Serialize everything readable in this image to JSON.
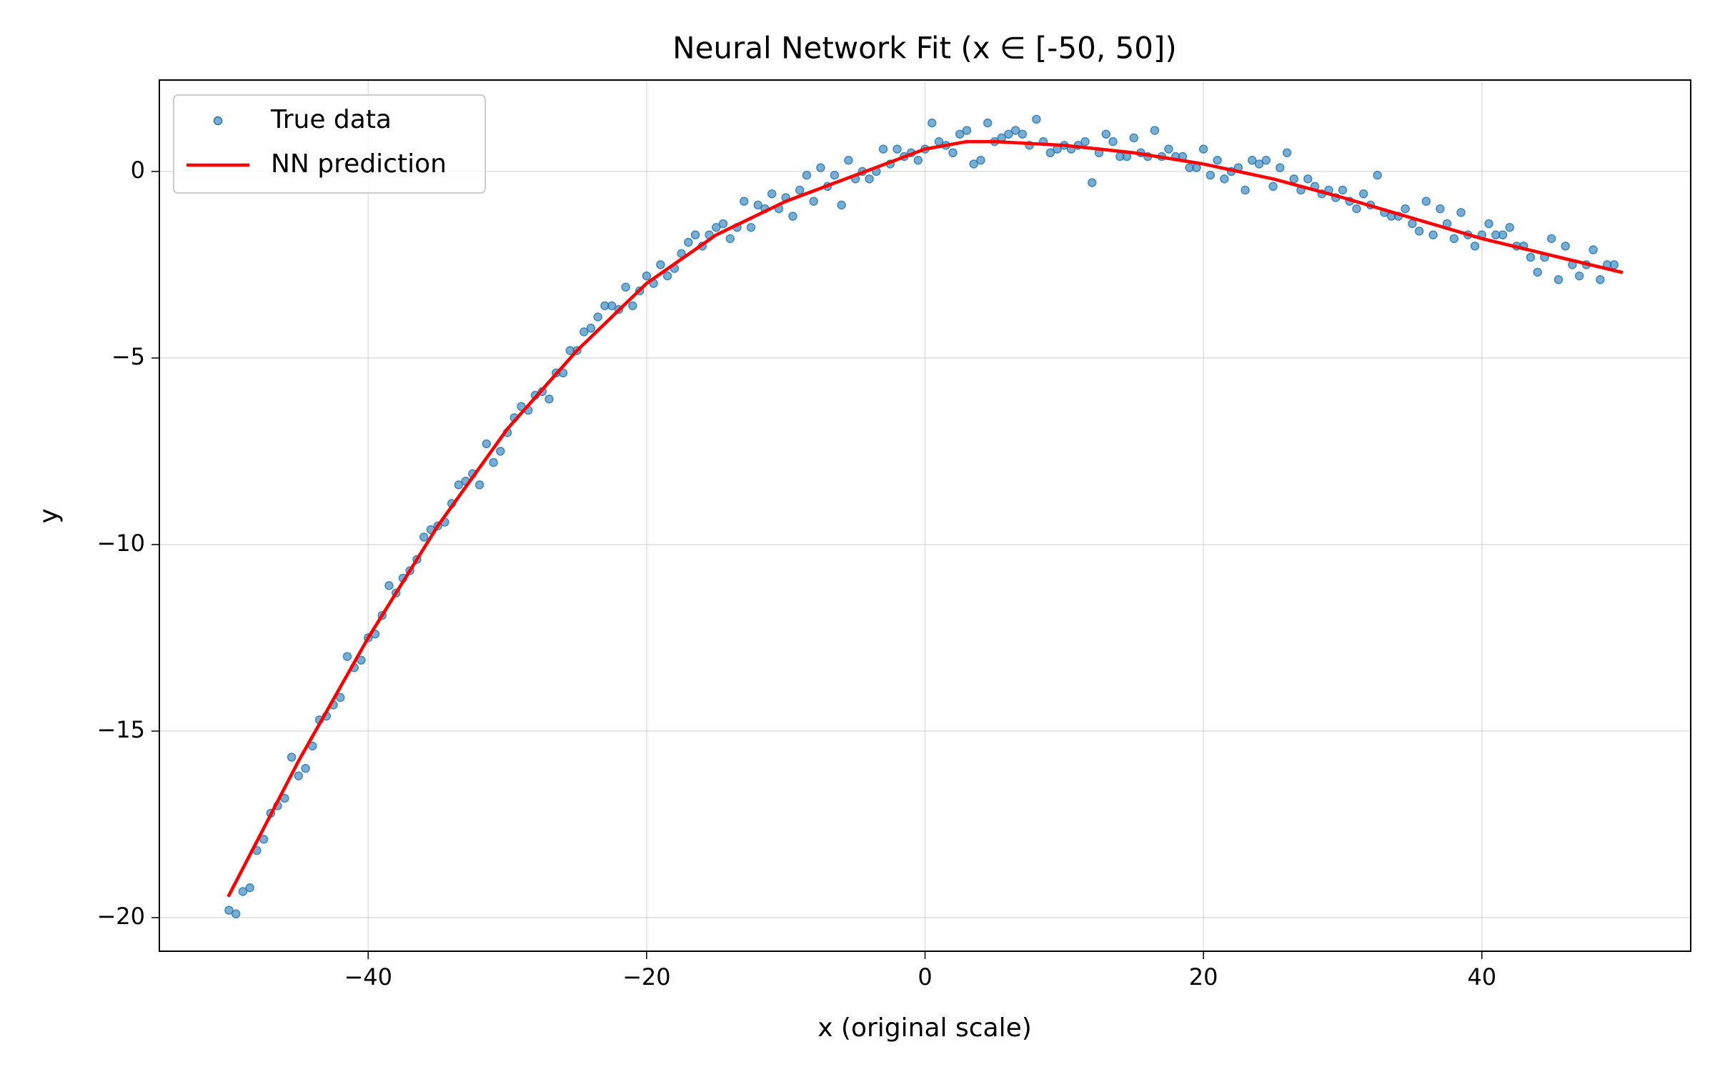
{
  "chart_data": {
    "type": "scatter_line",
    "title": "Neural Network Fit (x ∈ [-50, 50])",
    "x_label": "x (original scale)",
    "y_label": "y",
    "xlim": [
      -55,
      55
    ],
    "ylim": [
      -20.9,
      2.45
    ],
    "xticks": [
      {
        "value": -40,
        "label": "−40"
      },
      {
        "value": -20,
        "label": "−20"
      },
      0,
      20,
      40
    ],
    "yticks": [
      {
        "value": -20,
        "label": "−20"
      },
      {
        "value": -15,
        "label": "−15"
      },
      {
        "value": -10,
        "label": "−10"
      },
      {
        "value": -5,
        "label": "−5"
      },
      0
    ],
    "grid": true,
    "legend": "upper left",
    "series": [
      {
        "name": "True data",
        "kind": "scatter",
        "color": "#1f77b4",
        "x": [
          -50,
          -49.5,
          -49,
          -48.5,
          -48,
          -47.5,
          -47,
          -46.5,
          -46,
          -45.5,
          -45,
          -44.5,
          -44,
          -43.5,
          -43,
          -42.5,
          -42,
          -41.5,
          -41,
          -40.5,
          -40,
          -39.5,
          -39,
          -38.5,
          -38,
          -37.5,
          -37,
          -36.5,
          -36,
          -35.5,
          -35,
          -34.5,
          -34,
          -33.5,
          -33,
          -32.5,
          -32,
          -31.5,
          -31,
          -30.5,
          -30,
          -29.5,
          -29,
          -28.5,
          -28,
          -27.5,
          -27,
          -26.5,
          -26,
          -25.5,
          -25,
          -24.5,
          -24,
          -23.5,
          -23,
          -22.5,
          -22,
          -21.5,
          -21,
          -20.5,
          -20,
          -19.5,
          -19,
          -18.5,
          -18,
          -17.5,
          -17,
          -16.5,
          -16,
          -15.5,
          -15,
          -14.5,
          -14,
          -13.5,
          -13,
          -12.5,
          -12,
          -11.5,
          -11,
          -10.5,
          -10,
          -9.5,
          -9,
          -8.5,
          -8,
          -7.5,
          -7,
          -6.5,
          -6,
          -5.5,
          -5,
          -4.5,
          -4,
          -3.5,
          -3,
          -2.5,
          -2,
          -1.5,
          -1,
          -0.5,
          0,
          0.5,
          1,
          1.5,
          2,
          2.5,
          3,
          3.5,
          4,
          4.5,
          5,
          5.5,
          6,
          6.5,
          7,
          7.5,
          8,
          8.5,
          9,
          9.5,
          10,
          10.5,
          11,
          11.5,
          12,
          12.5,
          13,
          13.5,
          14,
          14.5,
          15,
          15.5,
          16,
          16.5,
          17,
          17.5,
          18,
          18.5,
          19,
          19.5,
          20,
          20.5,
          21,
          21.5,
          22,
          22.5,
          23,
          23.5,
          24,
          24.5,
          25,
          25.5,
          26,
          26.5,
          27,
          27.5,
          28,
          28.5,
          29,
          29.5,
          30,
          30.5,
          31,
          31.5,
          32,
          32.5,
          33,
          33.5,
          34,
          34.5,
          35,
          35.5,
          36,
          36.5,
          37,
          37.5,
          38,
          38.5,
          39,
          39.5,
          40,
          40.5,
          41,
          41.5,
          42,
          42.5,
          43,
          43.5,
          44,
          44.5,
          45,
          45.5,
          46,
          46.5,
          47,
          47.5,
          48,
          48.5,
          49,
          49.5
        ],
        "values": [
          -19.8,
          -19.9,
          -19.3,
          -19.2,
          -18.2,
          -17.9,
          -17.2,
          -17.0,
          -16.8,
          -15.7,
          -16.2,
          -16.0,
          -15.4,
          -14.7,
          -14.6,
          -14.3,
          -14.1,
          -13.0,
          -13.3,
          -13.1,
          -12.5,
          -12.4,
          -11.9,
          -11.1,
          -11.3,
          -10.9,
          -10.7,
          -10.4,
          -9.8,
          -9.6,
          -9.5,
          -9.4,
          -8.9,
          -8.4,
          -8.3,
          -8.1,
          -8.4,
          -7.3,
          -7.8,
          -7.5,
          -7.0,
          -6.6,
          -6.3,
          -6.4,
          -6.0,
          -5.9,
          -6.1,
          -5.4,
          -5.4,
          -4.8,
          -4.8,
          -4.3,
          -4.2,
          -3.9,
          -3.6,
          -3.6,
          -3.7,
          -3.1,
          -3.6,
          -3.2,
          -2.8,
          -3.0,
          -2.5,
          -2.8,
          -2.6,
          -2.2,
          -1.9,
          -1.7,
          -2.0,
          -1.7,
          -1.5,
          -1.4,
          -1.8,
          -1.5,
          -0.8,
          -1.5,
          -0.9,
          -1.0,
          -0.6,
          -1.0,
          -0.7,
          -1.2,
          -0.5,
          -0.1,
          -0.8,
          0.1,
          -0.4,
          -0.1,
          -0.9,
          0.3,
          -0.2,
          0.0,
          -0.2,
          0.0,
          0.6,
          0.2,
          0.6,
          0.4,
          0.5,
          0.3,
          0.6,
          1.3,
          0.8,
          0.7,
          0.5,
          1.0,
          1.1,
          0.2,
          0.3,
          1.3,
          0.8,
          0.9,
          1.0,
          1.1,
          1.0,
          0.7,
          1.4,
          0.8,
          0.5,
          0.6,
          0.7,
          0.6,
          0.7,
          0.8,
          -0.3,
          0.5,
          1.0,
          0.8,
          0.4,
          0.4,
          0.9,
          0.5,
          0.4,
          1.1,
          0.4,
          0.6,
          0.4,
          0.4,
          0.1,
          0.1,
          0.6,
          -0.1,
          0.3,
          -0.2,
          0.0,
          0.1,
          -0.5,
          0.3,
          0.2,
          0.3,
          -0.4,
          0.1,
          0.5,
          -0.2,
          -0.5,
          -0.2,
          -0.4,
          -0.6,
          -0.5,
          -0.7,
          -0.5,
          -0.8,
          -1.0,
          -0.6,
          -0.9,
          -0.1,
          -1.1,
          -1.2,
          -1.2,
          -1.0,
          -1.4,
          -1.6,
          -0.8,
          -1.7,
          -1.0,
          -1.4,
          -1.8,
          -1.1,
          -1.7,
          -2.0,
          -1.7,
          -1.4,
          -1.7,
          -1.7,
          -1.5,
          -2.0,
          -2.0,
          -2.3,
          -2.7,
          -2.3,
          -1.8,
          -2.9,
          -2.0,
          -2.5,
          -2.8,
          -2.5,
          -2.1,
          -2.9,
          -2.5,
          -2.5
        ]
      },
      {
        "name": "NN prediction",
        "kind": "line",
        "color": "#ff0000",
        "x": [
          -50,
          -45,
          -40,
          -35,
          -30,
          -25,
          -20,
          -15,
          -10,
          -5,
          0,
          3,
          5,
          10,
          15,
          20,
          25,
          30,
          35,
          40,
          45,
          50
        ],
        "values": [
          -19.4,
          -15.8,
          -12.5,
          -9.5,
          -6.9,
          -4.8,
          -3.0,
          -1.7,
          -0.8,
          -0.1,
          0.6,
          0.8,
          0.8,
          0.7,
          0.5,
          0.2,
          -0.2,
          -0.7,
          -1.25,
          -1.8,
          -2.25,
          -2.7
        ]
      }
    ]
  }
}
